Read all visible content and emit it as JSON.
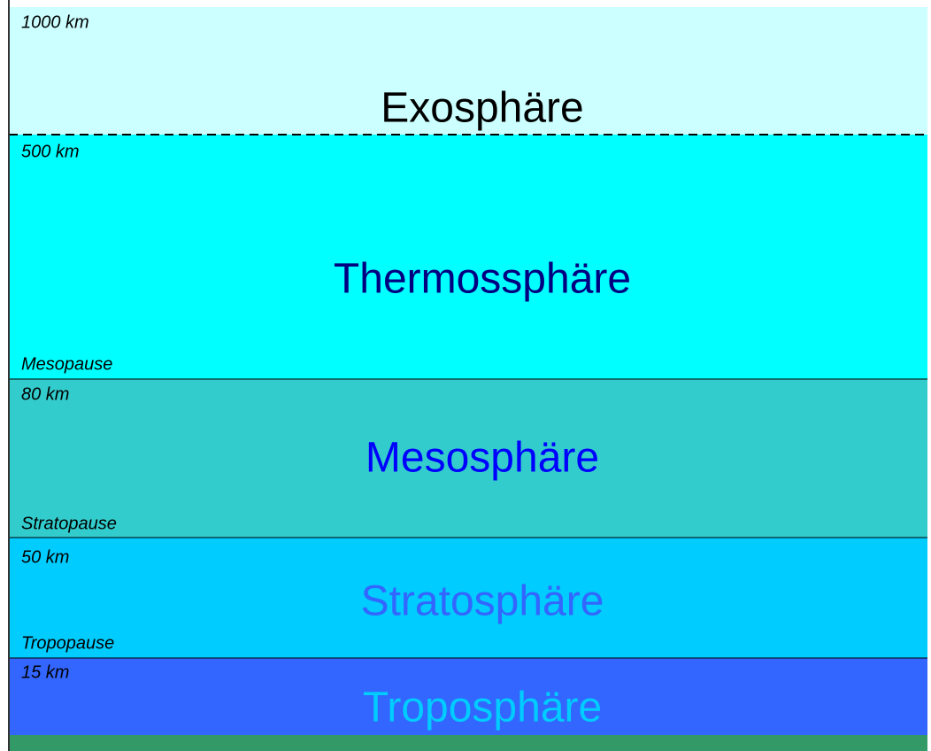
{
  "layers": [
    {
      "altitude": "1000 km",
      "name": "Exosphäre"
    },
    {
      "altitude": "500 km",
      "name": "Thermossphäre",
      "boundary": "Mesopause"
    },
    {
      "altitude": "80 km",
      "name": "Mesosphäre",
      "boundary": "Stratopause"
    },
    {
      "altitude": "50 km",
      "name": "Stratosphäre",
      "boundary": "Tropopause"
    },
    {
      "altitude": "15 km",
      "name": "Troposphäre"
    }
  ]
}
